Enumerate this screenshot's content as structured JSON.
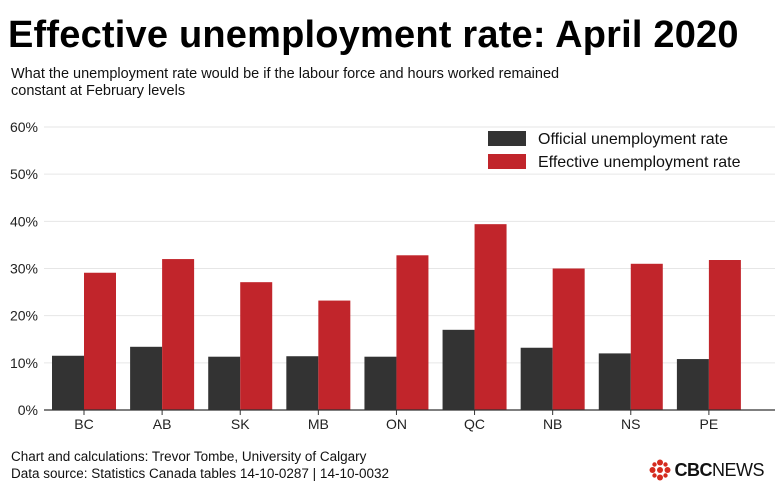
{
  "header": {
    "title": "Effective unemployment rate: April 2020",
    "subtitle": "What the unemployment rate would be if the labour force and hours worked remained constant at February levels"
  },
  "footer": {
    "credit": "Chart and calculations: Trevor Tombe, University of Calgary",
    "source": "Data source: Statistics Canada tables 14-10-0287 | 14-10-0032"
  },
  "logo": {
    "brand": "CBC",
    "suffix": "NEWS",
    "icon": "cbc-gem-icon",
    "color": "#d52b1e"
  },
  "chart_data": {
    "type": "bar",
    "title": "Effective unemployment rate: April 2020",
    "subtitle": "What the unemployment rate would be if the labour force and hours worked remained constant at February levels",
    "categories": [
      "BC",
      "AB",
      "SK",
      "MB",
      "ON",
      "QC",
      "NB",
      "NS",
      "PE"
    ],
    "series": [
      {
        "name": "Official unemployment rate",
        "color": "#333333",
        "values": [
          11.5,
          13.4,
          11.3,
          11.4,
          11.3,
          17.0,
          13.2,
          12.0,
          10.8
        ]
      },
      {
        "name": "Effective unemployment rate",
        "color": "#c1252b",
        "values": [
          29.1,
          32.0,
          27.1,
          23.2,
          32.8,
          39.4,
          30.0,
          31.0,
          31.8
        ]
      }
    ],
    "ylim": [
      0,
      60
    ],
    "yticks": [
      0,
      10,
      20,
      30,
      40,
      50,
      60
    ],
    "ytick_labels": [
      "0%",
      "10%",
      "20%",
      "30%",
      "40%",
      "50%",
      "60%"
    ],
    "grid": true,
    "legend_position": "top-right",
    "xlabel": "",
    "ylabel": ""
  }
}
